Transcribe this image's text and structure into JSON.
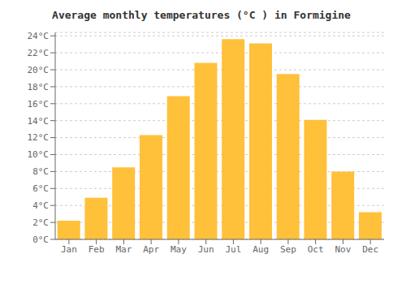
{
  "chart_data": {
    "type": "bar",
    "title": "Average monthly temperatures (°C ) in Formigine",
    "categories": [
      "Jan",
      "Feb",
      "Mar",
      "Apr",
      "May",
      "Jun",
      "Jul",
      "Aug",
      "Sep",
      "Oct",
      "Nov",
      "Dec"
    ],
    "values": [
      2.2,
      4.9,
      8.5,
      12.3,
      16.9,
      20.8,
      23.6,
      23.1,
      19.5,
      14.1,
      8.0,
      3.2
    ],
    "color": "#FFC03A",
    "ylim": [
      0,
      24.4
    ],
    "yticks": [
      {
        "value": 0,
        "label": "0°C"
      },
      {
        "value": 2,
        "label": "2°C"
      },
      {
        "value": 4,
        "label": "4°C"
      },
      {
        "value": 6,
        "label": "6°C"
      },
      {
        "value": 8,
        "label": "8°C"
      },
      {
        "value": 10,
        "label": "10°C"
      },
      {
        "value": 12,
        "label": "12°C"
      },
      {
        "value": 14,
        "label": "14°C"
      },
      {
        "value": 16,
        "label": "16°C"
      },
      {
        "value": 18,
        "label": "18°C"
      },
      {
        "value": 20,
        "label": "20°C"
      },
      {
        "value": 22,
        "label": "22°C"
      },
      {
        "value": 24,
        "label": "24°C"
      }
    ],
    "grid": true
  }
}
